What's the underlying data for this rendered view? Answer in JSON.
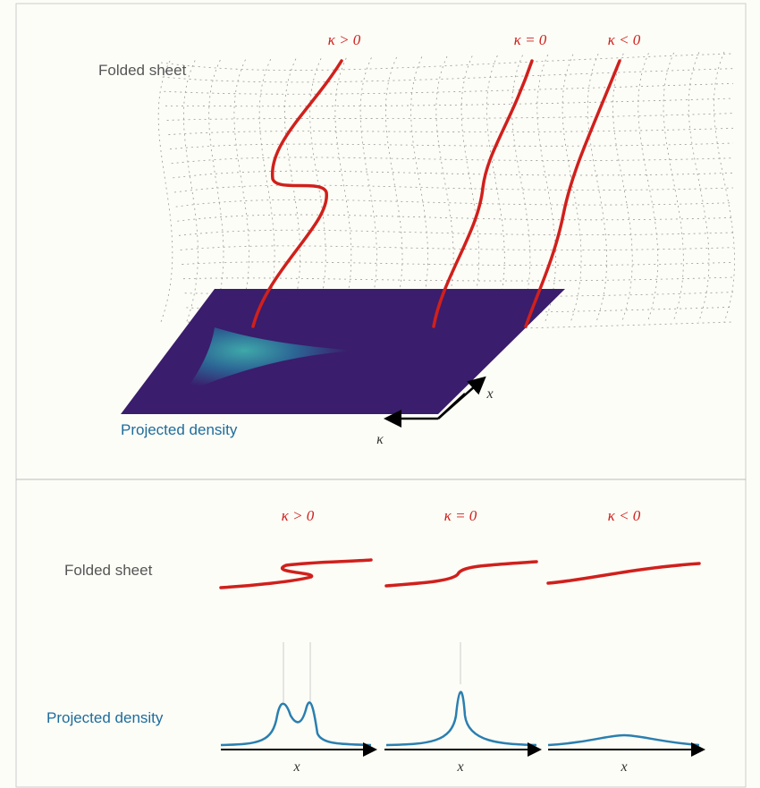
{
  "top_panel": {
    "case_labels": [
      "κ > 0",
      "κ = 0",
      "κ < 0"
    ],
    "sheet_label": "Folded sheet",
    "density_label": "Projected density",
    "axis_x": "x",
    "axis_kappa": "κ"
  },
  "bottom_panel": {
    "case_labels": [
      "κ > 0",
      "κ = 0",
      "κ < 0"
    ],
    "sheet_label": "Folded sheet",
    "density_label": "Projected density",
    "axis_labels": [
      "x",
      "x",
      "x"
    ]
  }
}
